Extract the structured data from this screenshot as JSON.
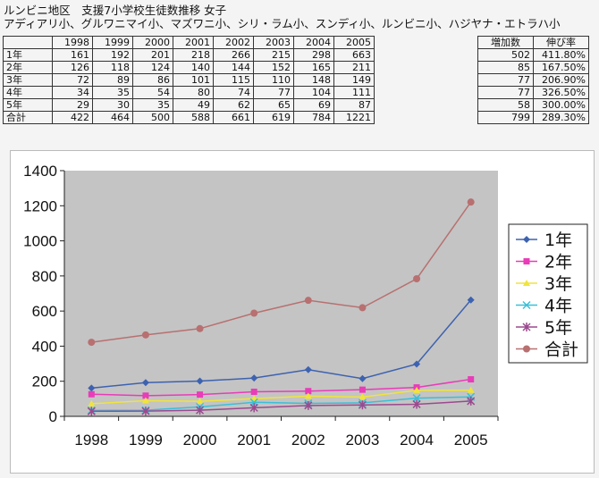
{
  "header": {
    "title": "ルンビニ地区　支援7小学校生徒数推移 女子",
    "schools": "アディアリ小、グルワニマイ小、マズワニ小、シリ・ラム小、スンディ小、ルンビニ小、ハジヤナ・エトラハ小"
  },
  "table": {
    "years": [
      "1998",
      "1999",
      "2000",
      "2001",
      "2002",
      "2003",
      "2004",
      "2005"
    ],
    "rows": [
      {
        "label": "1年",
        "values": [
          "161",
          "192",
          "201",
          "218",
          "266",
          "215",
          "298",
          "663"
        ]
      },
      {
        "label": "2年",
        "values": [
          "126",
          "118",
          "124",
          "140",
          "144",
          "152",
          "165",
          "211"
        ]
      },
      {
        "label": "3年",
        "values": [
          "72",
          "89",
          "86",
          "101",
          "115",
          "110",
          "148",
          "149"
        ]
      },
      {
        "label": "4年",
        "values": [
          "34",
          "35",
          "54",
          "80",
          "74",
          "77",
          "104",
          "111"
        ]
      },
      {
        "label": "5年",
        "values": [
          "29",
          "30",
          "35",
          "49",
          "62",
          "65",
          "69",
          "87"
        ]
      },
      {
        "label": "合計",
        "values": [
          "422",
          "464",
          "500",
          "588",
          "661",
          "619",
          "784",
          "1221"
        ]
      }
    ]
  },
  "side_table": {
    "headers": [
      "増加数",
      "伸び率"
    ],
    "rows": [
      [
        "502",
        "411.80%"
      ],
      [
        "85",
        "167.50%"
      ],
      [
        "77",
        "206.90%"
      ],
      [
        "77",
        "326.50%"
      ],
      [
        "58",
        "300.00%"
      ],
      [
        "799",
        "289.30%"
      ]
    ]
  },
  "chart_data": {
    "type": "line",
    "x": [
      "1998",
      "1999",
      "2000",
      "2001",
      "2002",
      "2003",
      "2004",
      "2005"
    ],
    "ylim": [
      0,
      1400
    ],
    "yticks": [
      0,
      200,
      400,
      600,
      800,
      1000,
      1200,
      1400
    ],
    "legend_position": "right",
    "grid": false,
    "series": [
      {
        "name": "1年",
        "values": [
          161,
          192,
          201,
          218,
          266,
          215,
          298,
          663
        ],
        "color": "#3d62b0",
        "marker": "diamond"
      },
      {
        "name": "2年",
        "values": [
          126,
          118,
          124,
          140,
          144,
          152,
          165,
          211
        ],
        "color": "#e83cb8",
        "marker": "square"
      },
      {
        "name": "3年",
        "values": [
          72,
          89,
          86,
          101,
          115,
          110,
          148,
          149
        ],
        "color": "#f0e43c",
        "marker": "triangle"
      },
      {
        "name": "4年",
        "values": [
          34,
          35,
          54,
          80,
          74,
          77,
          104,
          111
        ],
        "color": "#38c0d8",
        "marker": "x"
      },
      {
        "name": "5年",
        "values": [
          29,
          30,
          35,
          49,
          62,
          65,
          69,
          87
        ],
        "color": "#9a4a8e",
        "marker": "star"
      },
      {
        "name": "合計",
        "values": [
          422,
          464,
          500,
          588,
          661,
          619,
          784,
          1221
        ],
        "color": "#b87070",
        "marker": "circle"
      }
    ]
  }
}
